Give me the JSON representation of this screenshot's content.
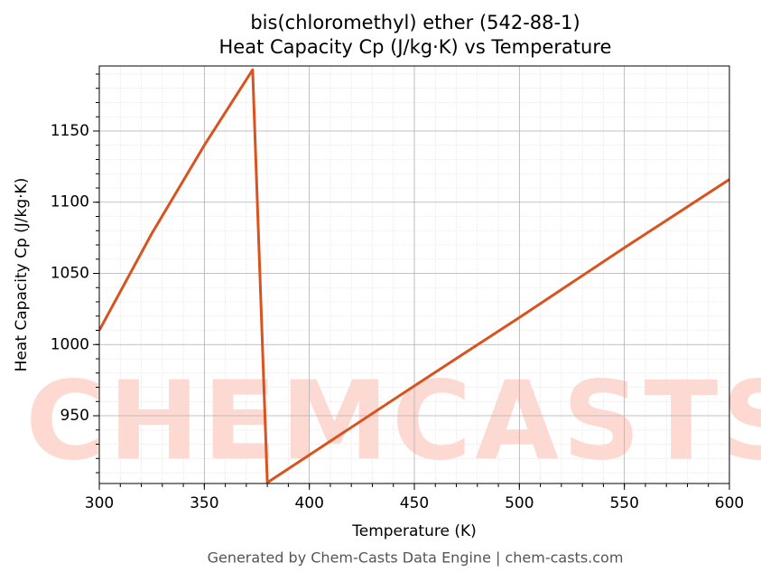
{
  "chart_data": {
    "type": "line",
    "title": "bis(chloromethyl) ether (542-88-1)",
    "subtitle": "Heat Capacity Cp (J/kg·K) vs Temperature",
    "x_label": "Temperature (K)",
    "y_label": "Heat Capacity Cp (J/kg·K)",
    "footer": "Generated by Chem-Casts Data Engine | chem-casts.com",
    "watermark": "CHEMCASTS",
    "x": [
      300,
      325,
      350,
      373,
      380,
      450,
      500,
      550,
      600
    ],
    "series": [
      {
        "name": "Heat Capacity Cp",
        "color": "#d9531e",
        "values": [
          1010,
          1078,
          1140,
          1193,
          903,
          971,
          1019,
          1068,
          1116
        ]
      }
    ],
    "xlim": [
      300,
      600
    ],
    "xticks": [
      300,
      350,
      400,
      450,
      500,
      550,
      600
    ],
    "ylim": [
      902.4,
      1195.7
    ],
    "yticks": [
      950,
      1000,
      1050,
      1100,
      1150
    ],
    "grid": true
  }
}
